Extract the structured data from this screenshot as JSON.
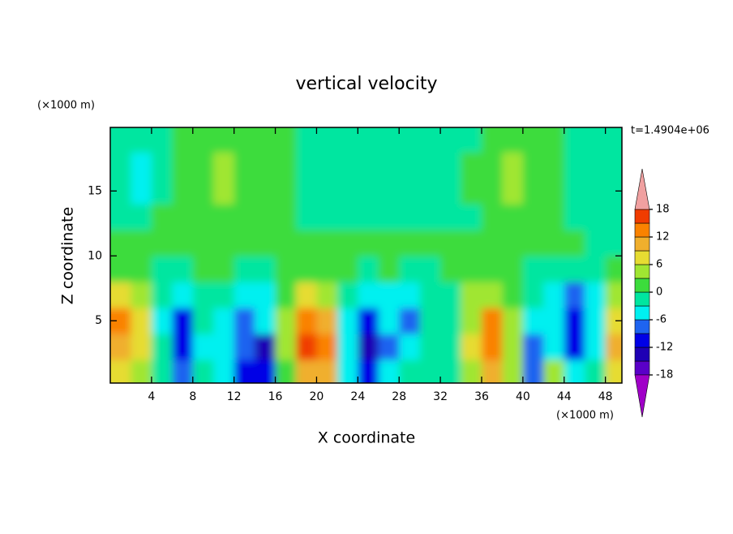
{
  "chart_data": {
    "type": "contour",
    "title": "vertical velocity",
    "x_label": "X coordinate",
    "y_label": "Z coordinate",
    "x_unit": "(×1000 m)",
    "y_unit": "(×1000 m)",
    "time_label": "t=1.4904e+06",
    "xlim": [
      0,
      49.6
    ],
    "ylim": [
      0.2,
      19.9
    ],
    "xticks": [
      4,
      8,
      12,
      16,
      20,
      24,
      28,
      32,
      36,
      40,
      44,
      48
    ],
    "yticks": [
      5,
      10,
      15
    ],
    "x": [
      1,
      3,
      5,
      7,
      9,
      11,
      13,
      15,
      17,
      19,
      21,
      23,
      25,
      27,
      29,
      31,
      33,
      35,
      37,
      39,
      41,
      43,
      45,
      47,
      49
    ],
    "z": [
      1,
      3,
      5,
      7,
      9,
      11,
      13,
      15,
      17,
      19
    ],
    "values": [
      [
        6,
        4,
        -2,
        -8,
        -3,
        -4,
        -10,
        -12,
        2,
        10,
        9,
        -4,
        -12,
        -6,
        -3,
        -2,
        -1,
        4,
        9,
        3,
        -9,
        5,
        -6,
        -3,
        6
      ],
      [
        11,
        7,
        -3,
        -11,
        -4,
        -5,
        -9,
        -14,
        4,
        16,
        12,
        -6,
        -15,
        -7,
        -5,
        -3,
        -2,
        6,
        14,
        5,
        -8,
        -4,
        -10,
        -4,
        9
      ],
      [
        12,
        7,
        -4,
        -10,
        -3,
        -4,
        -8,
        -5,
        3,
        14,
        10,
        -5,
        -12,
        -6,
        -9,
        -3,
        -2,
        5,
        12,
        3,
        -6,
        -6,
        -11,
        -5,
        8
      ],
      [
        7,
        3,
        -2,
        -4,
        -2,
        -3,
        -4,
        -4,
        1,
        6,
        4,
        -3,
        -5,
        -4,
        -5,
        -3,
        -2,
        3,
        5,
        1,
        -3,
        -5,
        -7,
        -4,
        4
      ],
      [
        1,
        0,
        -1,
        -2,
        0,
        1,
        -1,
        -1,
        1,
        1,
        1,
        0,
        -1,
        0,
        -1,
        -1,
        0,
        1,
        1,
        0,
        -1,
        -2,
        -3,
        -2,
        1
      ],
      [
        1,
        1,
        1,
        1,
        1,
        1,
        1,
        1,
        1,
        1,
        1,
        1,
        1,
        1,
        1,
        1,
        1,
        1,
        1,
        1,
        1,
        1,
        1,
        -1,
        -1
      ],
      [
        -1,
        -2,
        1,
        1,
        1,
        1,
        1,
        1,
        1,
        -1,
        -1,
        -1,
        -1,
        -1,
        -1,
        -1,
        -1,
        -1,
        1,
        1,
        1,
        1,
        -1,
        -1,
        -1
      ],
      [
        -2,
        -5,
        -2,
        1,
        1,
        4,
        1,
        1,
        1,
        -1,
        -1,
        -1,
        -1,
        -1,
        -1,
        -1,
        -1,
        1,
        2,
        4,
        2,
        1,
        -1,
        -1,
        -1
      ],
      [
        -2,
        -4,
        -2,
        1,
        2,
        3,
        1,
        1,
        1,
        -1,
        -1,
        -1,
        -1,
        -1,
        -1,
        -1,
        -1,
        1,
        2,
        3,
        2,
        1,
        -1,
        -1,
        -1
      ],
      [
        -1,
        -1,
        -1,
        1,
        1,
        1,
        1,
        1,
        1,
        -1,
        -1,
        -1,
        -1,
        -1,
        -1,
        -1,
        -1,
        -1,
        1,
        1,
        1,
        1,
        -1,
        -1,
        -1
      ]
    ],
    "levels": [
      -18,
      -15,
      -12,
      -9,
      -6,
      -3,
      0,
      3,
      6,
      9,
      12,
      15,
      18
    ],
    "colors": [
      "#a000c8",
      "#5a00c8",
      "#1e00b4",
      "#0000e6",
      "#1e64f0",
      "#00f0f0",
      "#00e6a0",
      "#3cdc3c",
      "#a0e632",
      "#e6dc32",
      "#f0af2d",
      "#fa8200",
      "#f03c00",
      "#f0a0a0"
    ],
    "colorbar_ticks": [
      -18,
      -12,
      -6,
      0,
      6,
      12,
      18
    ]
  }
}
